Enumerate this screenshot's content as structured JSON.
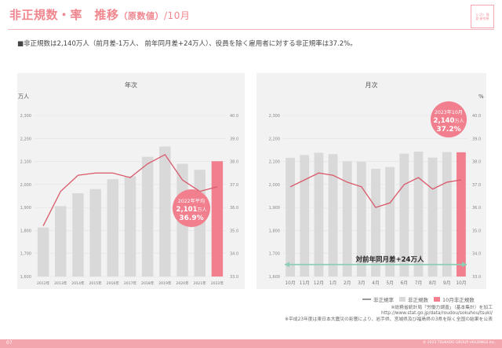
{
  "header": {
    "title_main": "非正規数・率　推移",
    "title_paren": "（原数値）",
    "title_date": "/10月",
    "logo_text": "シゴト 発見 研究所"
  },
  "summary": "■非正規数は2,140万人（前月差-1万人、 前年同月差+24万人）、役員を除く雇用者に対する非正規率は37.2%。",
  "colors": {
    "bar": "#d9d9d9",
    "highlight": "#f17f8e",
    "line": "#d9596b",
    "diff_line": "#8ccfb4",
    "pink": "#f0868e"
  },
  "chart_data": [
    {
      "type": "bar",
      "title": "年次",
      "ylabel_left": "万人",
      "categories": [
        "2012年",
        "2013年",
        "2014年",
        "2015年",
        "2016年",
        "2017年",
        "2018年",
        "2019年",
        "2020年",
        "2021年",
        "2022年"
      ],
      "y_ticks_left": [
        "1,600",
        "1,700",
        "1,800",
        "1,900",
        "2,000",
        "2,100",
        "2,200",
        "2,300"
      ],
      "y_ticks_right": [
        "33.0",
        "34.0",
        "35.0",
        "36.0",
        "37.0",
        "38.0",
        "39.0",
        "40.0"
      ],
      "ylim_left": [
        1600,
        2300
      ],
      "ylim_right": [
        33.0,
        40.0
      ],
      "series": [
        {
          "name": "非正規数",
          "axis": "left",
          "values": [
            1813,
            1906,
            1962,
            1980,
            2023,
            2036,
            2120,
            2165,
            2090,
            2064,
            2101
          ],
          "highlight_index": 10
        },
        {
          "name": "非正規率",
          "axis": "right",
          "kind": "line",
          "values": [
            35.2,
            36.7,
            37.4,
            37.5,
            37.5,
            37.3,
            37.9,
            38.3,
            37.2,
            36.7,
            36.9
          ]
        }
      ],
      "callout": {
        "label": "2022年平均",
        "value": "2,101",
        "unit": "万人",
        "rate": "36.9%"
      }
    },
    {
      "type": "bar",
      "title": "月次",
      "ylabel_right": "%",
      "categories": [
        "10月",
        "11月",
        "12月",
        "1月",
        "2月",
        "3月",
        "4月",
        "5月",
        "6月",
        "7月",
        "8月",
        "9月",
        "10月"
      ],
      "y_ticks_left": [
        "1,600",
        "1,700",
        "1,800",
        "1,900",
        "2,000",
        "2,100",
        "2,200",
        "2,300"
      ],
      "y_ticks_right": [
        "33.0",
        "34.0",
        "35.0",
        "36.0",
        "37.0",
        "38.0",
        "39.0",
        "40.0"
      ],
      "ylim_left": [
        1600,
        2300
      ],
      "ylim_right": [
        33.0,
        40.0
      ],
      "series": [
        {
          "name": "非正規数",
          "axis": "left",
          "values": [
            2116,
            2128,
            2138,
            2132,
            2101,
            2099,
            2068,
            2076,
            2134,
            2143,
            2117,
            2141,
            2140
          ],
          "highlight_index": 12
        },
        {
          "name": "非正規率",
          "axis": "right",
          "kind": "line",
          "values": [
            36.9,
            37.2,
            37.5,
            37.4,
            37.1,
            36.9,
            36.0,
            36.2,
            37.0,
            37.3,
            36.8,
            37.1,
            37.2
          ]
        }
      ],
      "callout": {
        "label": "2023年10月",
        "value": "2,140",
        "unit": "万人",
        "rate": "37.2%"
      },
      "diff_annotation": "対前年同月差+24万人",
      "diff_level": 1652
    }
  ],
  "legend": {
    "rate": "非正規率",
    "count": "非正規数",
    "highlight": "10月非正規数"
  },
  "notes": [
    "※総務省統計局「労働力調査」（基本集計）を加工",
    "http://www.stat.go.jp/data/roudou/sokuhou/tsuki/",
    "※平成23年度は東日本大震災の影響により、岩手県、宮城県及び福島県の3県を除く全国の結果を公表"
  ],
  "footer": {
    "page": "07",
    "copyright": "© 2023 TSUKADO GROUP HOLDINGS Inc."
  }
}
